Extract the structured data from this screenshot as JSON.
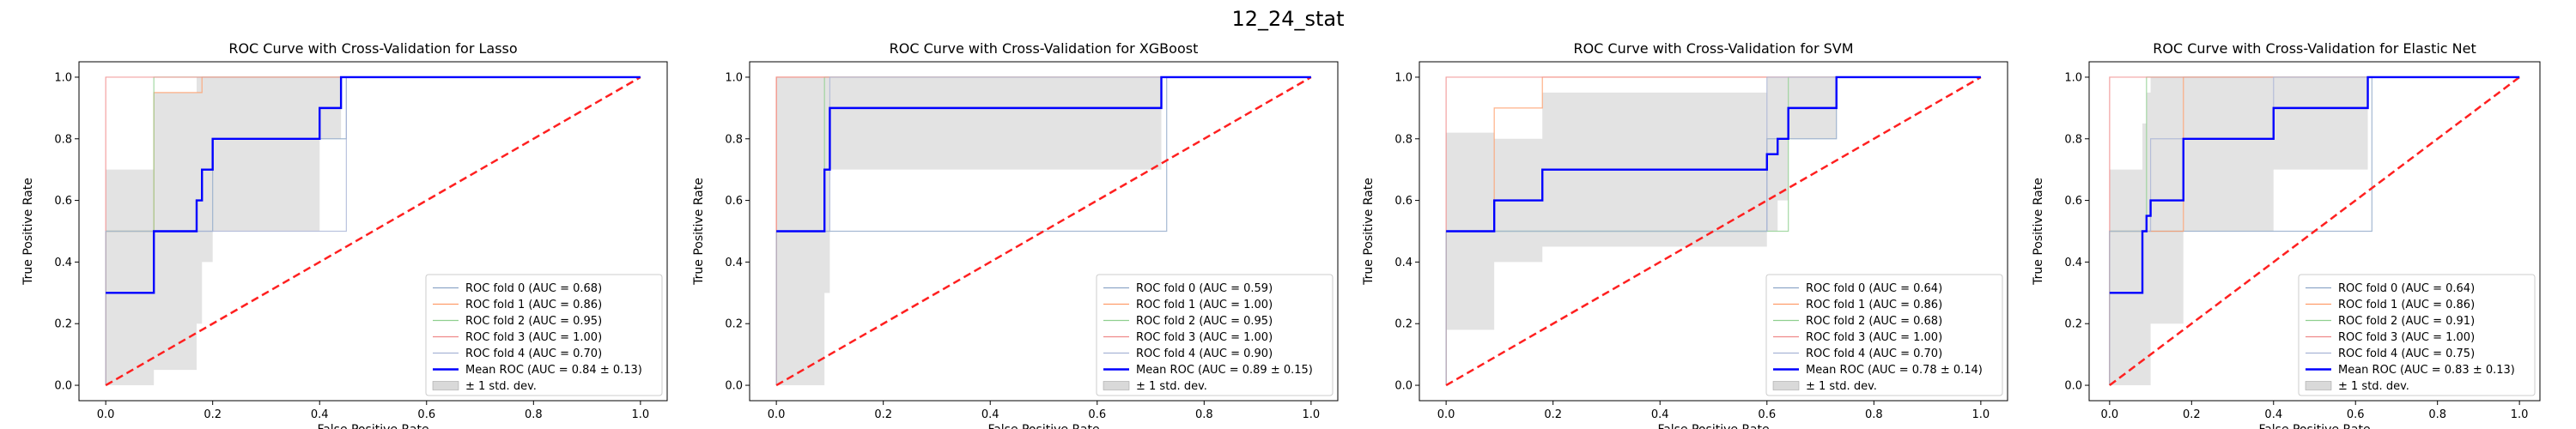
{
  "figure": {
    "suptitle": "12_24_stat"
  },
  "style": {
    "fold_colors": [
      "#8ea7c8",
      "#ff9d6a",
      "#8fd08f",
      "#f08a8a",
      "#a9b4d6"
    ],
    "mean_color": "#0000ff",
    "chance_color": "#ff2020",
    "band_color": "#d9d9d9",
    "axes_color": "#000000"
  },
  "chart_data": [
    {
      "type": "line",
      "title": "ROC Curve with Cross-Validation for Lasso",
      "xlabel": "False Positive Rate",
      "ylabel": "True Positive Rate",
      "xlim": [
        -0.05,
        1.05
      ],
      "ylim": [
        -0.05,
        1.05
      ],
      "xticks": [
        "0.0",
        "0.2",
        "0.4",
        "0.6",
        "0.8",
        "1.0"
      ],
      "yticks": [
        "0.0",
        "0.2",
        "0.4",
        "0.6",
        "0.8",
        "1.0"
      ],
      "legend_position": "lower right",
      "folds": [
        {
          "name": "ROC fold 0 (AUC = 0.68)",
          "x": [
            0,
            0,
            0.2,
            0.2,
            0.45,
            0.45,
            1
          ],
          "y": [
            0,
            0.5,
            0.5,
            0.8,
            0.8,
            1,
            1
          ]
        },
        {
          "name": "ROC fold 1 (AUC = 0.86)",
          "x": [
            0,
            0,
            0.09,
            0.09,
            0.18,
            0.18,
            1
          ],
          "y": [
            0,
            0.5,
            0.5,
            0.95,
            0.95,
            1,
            1
          ]
        },
        {
          "name": "ROC fold 2 (AUC = 0.95)",
          "x": [
            0,
            0,
            0.09,
            0.09,
            0.4,
            0.4,
            1
          ],
          "y": [
            0,
            0.5,
            0.5,
            1,
            1,
            1,
            1
          ]
        },
        {
          "name": "ROC fold 3 (AUC = 1.00)",
          "x": [
            0,
            0,
            1
          ],
          "y": [
            0,
            1,
            1
          ]
        },
        {
          "name": "ROC fold 4 (AUC = 0.70)",
          "x": [
            0,
            0,
            0.45,
            0.45,
            1
          ],
          "y": [
            0,
            0.5,
            0.5,
            1,
            1
          ]
        }
      ],
      "mean": {
        "name": "Mean ROC (AUC = 0.84 ± 0.13)",
        "x": [
          0,
          0.09,
          0.09,
          0.17,
          0.17,
          0.18,
          0.18,
          0.2,
          0.2,
          0.4,
          0.4,
          0.44,
          0.44,
          1
        ],
        "y": [
          0.3,
          0.3,
          0.5,
          0.5,
          0.6,
          0.6,
          0.7,
          0.7,
          0.8,
          0.8,
          0.9,
          0.9,
          1,
          1
        ]
      },
      "band": {
        "name": "± 1 std. dev.",
        "x": [
          0,
          0.09,
          0.09,
          0.17,
          0.17,
          0.18,
          0.18,
          0.2,
          0.2,
          0.4,
          0.4,
          0.44,
          0.44,
          1
        ],
        "upper": [
          0.7,
          0.7,
          0.95,
          0.95,
          1,
          1,
          1,
          1,
          1,
          1,
          1,
          1,
          1,
          1
        ],
        "lower": [
          0,
          0,
          0.05,
          0.05,
          0.2,
          0.2,
          0.4,
          0.4,
          0.5,
          0.5,
          0.8,
          0.8,
          1,
          1
        ]
      }
    },
    {
      "type": "line",
      "title": "ROC Curve with Cross-Validation for XGBoost",
      "xlabel": "False Positive Rate",
      "ylabel": "True Positive Rate",
      "xlim": [
        -0.05,
        1.05
      ],
      "ylim": [
        -0.05,
        1.05
      ],
      "xticks": [
        "0.0",
        "0.2",
        "0.4",
        "0.6",
        "0.8",
        "1.0"
      ],
      "yticks": [
        "0.0",
        "0.2",
        "0.4",
        "0.6",
        "0.8",
        "1.0"
      ],
      "legend_position": "lower right",
      "folds": [
        {
          "name": "ROC fold 0 (AUC = 0.59)",
          "x": [
            0,
            0,
            0.73,
            0.73,
            1
          ],
          "y": [
            0,
            0.5,
            0.5,
            1,
            1
          ]
        },
        {
          "name": "ROC fold 1 (AUC = 1.00)",
          "x": [
            0,
            0,
            1
          ],
          "y": [
            0,
            1,
            1
          ]
        },
        {
          "name": "ROC fold 2 (AUC = 0.95)",
          "x": [
            0,
            0,
            0.09,
            0.09,
            1
          ],
          "y": [
            0,
            0.5,
            0.5,
            1,
            1
          ]
        },
        {
          "name": "ROC fold 3 (AUC = 1.00)",
          "x": [
            0,
            0,
            1
          ],
          "y": [
            0,
            1,
            1
          ]
        },
        {
          "name": "ROC fold 4 (AUC = 0.90)",
          "x": [
            0,
            0,
            0.1,
            0.1,
            1
          ],
          "y": [
            0,
            0.5,
            0.5,
            1,
            1
          ]
        }
      ],
      "mean": {
        "name": "Mean ROC (AUC = 0.89 ± 0.15)",
        "x": [
          0,
          0.09,
          0.09,
          0.1,
          0.1,
          0.72,
          0.72,
          1
        ],
        "y": [
          0.5,
          0.5,
          0.7,
          0.7,
          0.9,
          0.9,
          1,
          1
        ]
      },
      "band": {
        "name": "± 1 std. dev.",
        "x": [
          0,
          0.09,
          0.09,
          0.1,
          0.1,
          0.72,
          0.72,
          1
        ],
        "upper": [
          1,
          1,
          1,
          1,
          1,
          1,
          1,
          1
        ],
        "lower": [
          0,
          0,
          0.3,
          0.3,
          0.7,
          0.7,
          1,
          1
        ]
      }
    },
    {
      "type": "line",
      "title": "ROC Curve with Cross-Validation for SVM",
      "xlabel": "False Positive Rate",
      "ylabel": "True Positive Rate",
      "xlim": [
        -0.05,
        1.05
      ],
      "ylim": [
        -0.05,
        1.05
      ],
      "xticks": [
        "0.0",
        "0.2",
        "0.4",
        "0.6",
        "0.8",
        "1.0"
      ],
      "yticks": [
        "0.0",
        "0.2",
        "0.4",
        "0.6",
        "0.8",
        "1.0"
      ],
      "legend_position": "lower right",
      "folds": [
        {
          "name": "ROC fold 0 (AUC = 0.64)",
          "x": [
            0,
            0,
            0.6,
            0.6,
            0.73,
            0.73,
            1
          ],
          "y": [
            0,
            0.5,
            0.5,
            0.8,
            0.8,
            1,
            1
          ]
        },
        {
          "name": "ROC fold 1 (AUC = 0.86)",
          "x": [
            0,
            0,
            0.09,
            0.09,
            0.18,
            0.18,
            1
          ],
          "y": [
            0,
            0.5,
            0.5,
            0.9,
            0.9,
            1,
            1
          ]
        },
        {
          "name": "ROC fold 2 (AUC = 0.68)",
          "x": [
            0,
            0,
            0.64,
            0.64,
            1
          ],
          "y": [
            0,
            0.5,
            0.5,
            1,
            1
          ]
        },
        {
          "name": "ROC fold 3 (AUC = 1.00)",
          "x": [
            0,
            0,
            1
          ],
          "y": [
            0,
            1,
            1
          ]
        },
        {
          "name": "ROC fold 4 (AUC = 0.70)",
          "x": [
            0,
            0,
            0.6,
            0.6,
            1
          ],
          "y": [
            0,
            0.5,
            0.5,
            1,
            1
          ]
        }
      ],
      "mean": {
        "name": "Mean ROC (AUC = 0.78 ± 0.14)",
        "x": [
          0,
          0.09,
          0.09,
          0.18,
          0.18,
          0.6,
          0.6,
          0.62,
          0.62,
          0.64,
          0.64,
          0.73,
          0.73,
          1
        ],
        "y": [
          0.5,
          0.5,
          0.6,
          0.6,
          0.7,
          0.7,
          0.75,
          0.75,
          0.8,
          0.8,
          0.9,
          0.9,
          1,
          1
        ]
      },
      "band": {
        "name": "± 1 std. dev.",
        "x": [
          0,
          0.09,
          0.09,
          0.18,
          0.18,
          0.6,
          0.6,
          0.62,
          0.62,
          0.64,
          0.64,
          0.73,
          0.73,
          1
        ],
        "upper": [
          0.82,
          0.82,
          0.8,
          0.8,
          0.95,
          0.95,
          1,
          1,
          1,
          1,
          1,
          1,
          1,
          1
        ],
        "lower": [
          0.18,
          0.18,
          0.4,
          0.4,
          0.45,
          0.45,
          0.5,
          0.5,
          0.6,
          0.6,
          0.8,
          0.8,
          1,
          1
        ]
      }
    },
    {
      "type": "line",
      "title": "ROC Curve with Cross-Validation for Elastic Net",
      "xlabel": "False Positive Rate",
      "ylabel": "True Positive Rate",
      "xlim": [
        -0.05,
        1.05
      ],
      "ylim": [
        -0.05,
        1.05
      ],
      "xticks": [
        "0.0",
        "0.2",
        "0.4",
        "0.6",
        "0.8",
        "1.0"
      ],
      "yticks": [
        "0.0",
        "0.2",
        "0.4",
        "0.6",
        "0.8",
        "1.0"
      ],
      "legend_position": "lower right",
      "folds": [
        {
          "name": "ROC fold 0 (AUC = 0.64)",
          "x": [
            0,
            0,
            0.64,
            0.64,
            1
          ],
          "y": [
            0,
            0.5,
            0.5,
            1,
            1
          ]
        },
        {
          "name": "ROC fold 1 (AUC = 0.86)",
          "x": [
            0,
            0,
            0.18,
            0.18,
            1
          ],
          "y": [
            0,
            0.5,
            0.5,
            1,
            1
          ]
        },
        {
          "name": "ROC fold 2 (AUC = 0.91)",
          "x": [
            0,
            0,
            0.09,
            0.09,
            1
          ],
          "y": [
            0,
            0.5,
            0.5,
            1,
            1
          ]
        },
        {
          "name": "ROC fold 3 (AUC = 1.00)",
          "x": [
            0,
            0,
            1
          ],
          "y": [
            0,
            1,
            1
          ]
        },
        {
          "name": "ROC fold 4 (AUC = 0.75)",
          "x": [
            0,
            0,
            0.1,
            0.1,
            0.4,
            0.4,
            1
          ],
          "y": [
            0,
            0.5,
            0.5,
            0.8,
            0.8,
            1,
            1
          ]
        }
      ],
      "mean": {
        "name": "Mean ROC (AUC = 0.83 ± 0.13)",
        "x": [
          0,
          0.08,
          0.08,
          0.09,
          0.09,
          0.1,
          0.1,
          0.18,
          0.18,
          0.4,
          0.4,
          0.63,
          0.63,
          1
        ],
        "y": [
          0.3,
          0.3,
          0.5,
          0.5,
          0.55,
          0.55,
          0.6,
          0.6,
          0.8,
          0.8,
          0.9,
          0.9,
          1,
          1
        ]
      },
      "band": {
        "name": "± 1 std. dev.",
        "x": [
          0,
          0.08,
          0.08,
          0.09,
          0.09,
          0.1,
          0.1,
          0.18,
          0.18,
          0.4,
          0.4,
          0.63,
          0.63,
          1
        ],
        "upper": [
          0.7,
          0.7,
          0.85,
          0.85,
          0.95,
          0.95,
          1,
          1,
          1,
          1,
          1,
          1,
          1,
          1
        ],
        "lower": [
          0,
          0,
          0,
          0,
          0,
          0,
          0.2,
          0.2,
          0.5,
          0.5,
          0.7,
          0.7,
          1,
          1
        ]
      }
    }
  ]
}
